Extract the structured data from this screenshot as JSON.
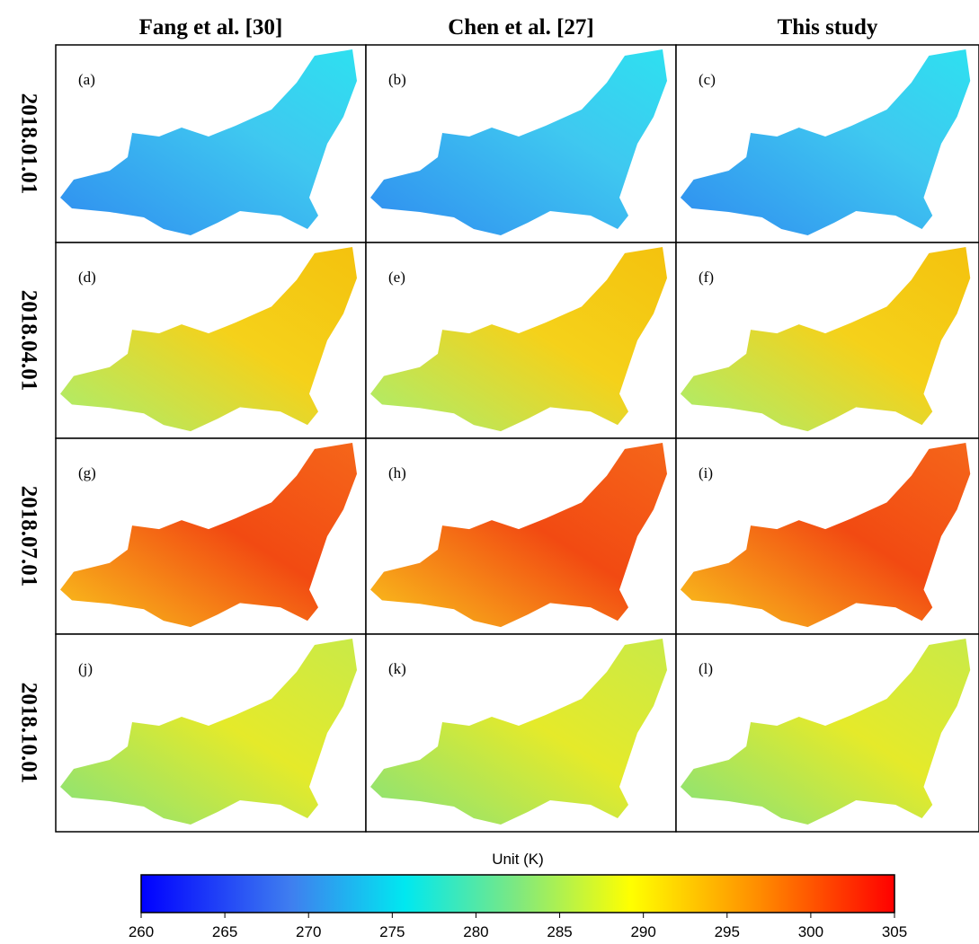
{
  "columns": [
    "Fang et al. [30]",
    "Chen et al. [27]",
    "This study"
  ],
  "rows": [
    "2018.01.01",
    "2018.04.01",
    "2018.07.01",
    "2018.10.01"
  ],
  "panels": [
    [
      "(a)",
      "(b)",
      "(c)"
    ],
    [
      "(d)",
      "(e)",
      "(f)"
    ],
    [
      "(g)",
      "(h)",
      "(i)"
    ],
    [
      "(j)",
      "(k)",
      "(l)"
    ]
  ],
  "colorbar": {
    "title": "Unit (K)",
    "range": [
      260,
      305
    ],
    "ticks": [
      260,
      265,
      270,
      275,
      280,
      285,
      290,
      295,
      300,
      305
    ]
  }
}
